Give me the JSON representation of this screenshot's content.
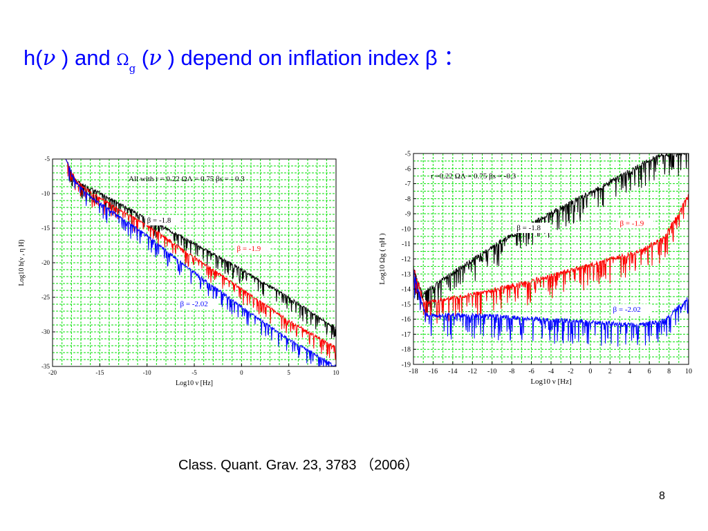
{
  "slide": {
    "title": {
      "part1": "h(",
      "nu1": "ν",
      "part2": " ) and ",
      "omega": "Ω",
      "sub": "g",
      "part3": " (",
      "nu2": "ν",
      "part4": " ) depend on inflation index β ："
    },
    "citation": "Class. Quant. Grav. 23,  3783 （2006）",
    "page_number": "8"
  },
  "colors": {
    "black": "#000000",
    "red": "#ff0000",
    "blue": "#0000ff",
    "grid": "#00e000",
    "title": "#0000ff"
  },
  "chart_data": [
    {
      "type": "line",
      "xlabel": "Log10 ν [Hz]",
      "ylabel": "Log10 h(ν , η H)",
      "xlim": [
        -20,
        10
      ],
      "ylim": [
        -35,
        -5
      ],
      "xticks": [
        -20,
        -15,
        -10,
        -5,
        0,
        5,
        10
      ],
      "yticks": [
        -5,
        -10,
        -15,
        -20,
        -25,
        -30,
        -35
      ],
      "grid": true,
      "annotation": "All with   r = 0.22    ΩΛ = 0.75    βs = - 0.3",
      "series": [
        {
          "name": "β = -1.8",
          "color": "#000000",
          "x": [
            -20,
            -18.6,
            -18.2,
            -17.5,
            -16,
            -10,
            -5,
            0,
            5,
            10
          ],
          "y": [
            -5,
            -5,
            -6.2,
            -8.2,
            -9.2,
            -13.6,
            -17.2,
            -21,
            -25,
            -29.5
          ]
        },
        {
          "name": "β = -1.9",
          "color": "#ff0000",
          "x": [
            -20,
            -18.6,
            -18.2,
            -17.5,
            -16,
            -10,
            -5,
            0,
            5,
            10
          ],
          "y": [
            -5,
            -5,
            -6.2,
            -8.2,
            -9.8,
            -14.6,
            -19.2,
            -23.8,
            -28.4,
            -32.3
          ]
        },
        {
          "name": "β = -2.02",
          "color": "#0000ff",
          "x": [
            -20,
            -18.6,
            -18.2,
            -17.5,
            -16,
            -10,
            -5,
            0,
            5,
            10
          ],
          "y": [
            -5,
            -5,
            -6.2,
            -8.5,
            -10.4,
            -16.1,
            -21.4,
            -26.4,
            -31.1,
            -35
          ]
        }
      ]
    },
    {
      "type": "line",
      "xlabel": "Log10 ν [Hz]",
      "ylabel": "Log10 Ωg ( ηH )",
      "xlim": [
        -18,
        10
      ],
      "ylim": [
        -19,
        -5
      ],
      "xticks": [
        -18,
        -16,
        -14,
        -12,
        -10,
        -8,
        -6,
        -4,
        -2,
        0,
        2,
        4,
        6,
        8,
        10
      ],
      "yticks": [
        -5,
        -6,
        -7,
        -8,
        -9,
        -10,
        -11,
        -12,
        -13,
        -14,
        -15,
        -16,
        -17,
        -18,
        -19
      ],
      "grid": true,
      "annotation": "r =0.22    ΩΛ = 0.75    βs = -0.3",
      "series": [
        {
          "name": "β = -1.8",
          "color": "#000000",
          "x": [
            -18,
            -17,
            -16.7,
            -10,
            -5,
            0,
            5,
            7,
            10
          ],
          "y": [
            -12.5,
            -14.5,
            -14.1,
            -11.2,
            -9.3,
            -7.6,
            -5.8,
            -5.1,
            -4.9
          ]
        },
        {
          "name": "β = -1.9",
          "color": "#ff0000",
          "x": [
            -18,
            -17,
            -16.7,
            -10,
            -5,
            0,
            5,
            7.5,
            10
          ],
          "y": [
            -12.5,
            -14.8,
            -14.9,
            -14.1,
            -13.3,
            -12.4,
            -11.5,
            -10.6,
            -7.8
          ]
        },
        {
          "name": "β = -2.02",
          "color": "#0000ff",
          "x": [
            -18,
            -17,
            -16.7,
            -10,
            -5,
            0,
            5,
            7.5,
            10
          ],
          "y": [
            -12.8,
            -15.3,
            -15.7,
            -15.8,
            -16.0,
            -16.2,
            -16.4,
            -16.1,
            -14.6
          ]
        }
      ]
    }
  ]
}
